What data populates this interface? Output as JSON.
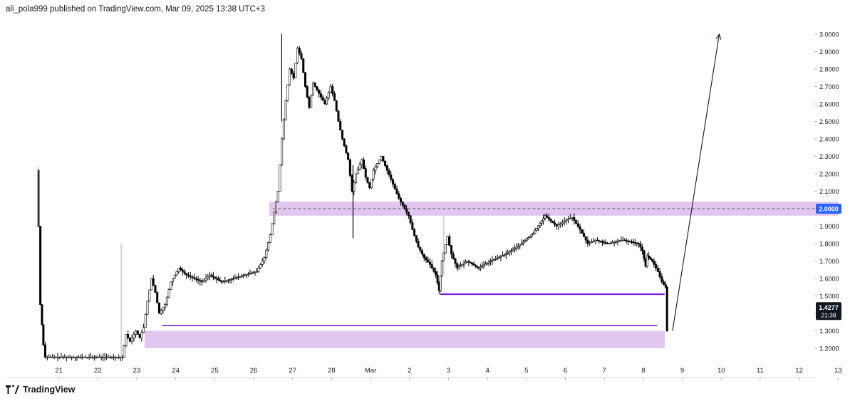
{
  "header": {
    "published_by": "ali_pola999 published on TradingView.com, Mar 09, 2025 13:38 UTC+3"
  },
  "footer": {
    "brand": "TradingView"
  },
  "colors": {
    "candle": "#000000",
    "zone_fill": "#e1c6ef",
    "support_line": "#7b1fd6",
    "level_line": "#2962ff",
    "price_label_bg": "#2962ff",
    "current_label_bg": "#131722"
  },
  "chart_data": {
    "type": "candlestick",
    "title": "",
    "xlabel": "",
    "ylabel": "",
    "y_axis_position": "right",
    "ylim": [
      1.15,
      3.04
    ],
    "y_ticks": [
      "1.2000",
      "1.3000",
      "1.4000",
      "1.5000",
      "1.6000",
      "1.7000",
      "1.8000",
      "1.9000",
      "2.0000",
      "2.1000",
      "2.2000",
      "2.3000",
      "2.4000",
      "2.5000",
      "2.6000",
      "2.7000",
      "2.8000",
      "2.9000",
      "3.0000"
    ],
    "x_ticks": [
      "21",
      "22",
      "23",
      "24",
      "25",
      "26",
      "27",
      "28",
      "Mar",
      "2",
      "3",
      "4",
      "5",
      "6",
      "7",
      "8",
      "9",
      "10",
      "11",
      "12",
      "13"
    ],
    "price_path": [
      {
        "x": 20.45,
        "y": 2.22
      },
      {
        "x": 20.5,
        "y": 1.9
      },
      {
        "x": 20.55,
        "y": 1.45
      },
      {
        "x": 20.62,
        "y": 1.22
      },
      {
        "x": 20.68,
        "y": 1.15
      },
      {
        "x": 22.65,
        "y": 1.15
      },
      {
        "x": 22.75,
        "y": 1.28
      },
      {
        "x": 22.85,
        "y": 1.24
      },
      {
        "x": 23.0,
        "y": 1.3
      },
      {
        "x": 23.1,
        "y": 1.26
      },
      {
        "x": 23.2,
        "y": 1.32
      },
      {
        "x": 23.3,
        "y": 1.47
      },
      {
        "x": 23.4,
        "y": 1.6
      },
      {
        "x": 23.5,
        "y": 1.52
      },
      {
        "x": 23.6,
        "y": 1.4
      },
      {
        "x": 23.75,
        "y": 1.45
      },
      {
        "x": 23.9,
        "y": 1.58
      },
      {
        "x": 24.1,
        "y": 1.66
      },
      {
        "x": 24.3,
        "y": 1.62
      },
      {
        "x": 24.5,
        "y": 1.6
      },
      {
        "x": 24.7,
        "y": 1.58
      },
      {
        "x": 24.9,
        "y": 1.62
      },
      {
        "x": 25.2,
        "y": 1.58
      },
      {
        "x": 25.5,
        "y": 1.6
      },
      {
        "x": 25.8,
        "y": 1.62
      },
      {
        "x": 26.1,
        "y": 1.64
      },
      {
        "x": 26.3,
        "y": 1.72
      },
      {
        "x": 26.45,
        "y": 1.85
      },
      {
        "x": 26.55,
        "y": 1.98
      },
      {
        "x": 26.65,
        "y": 2.1
      },
      {
        "x": 26.75,
        "y": 2.4
      },
      {
        "x": 26.85,
        "y": 2.62
      },
      {
        "x": 26.95,
        "y": 2.8
      },
      {
        "x": 27.05,
        "y": 2.75
      },
      {
        "x": 27.15,
        "y": 2.92
      },
      {
        "x": 27.25,
        "y": 2.86
      },
      {
        "x": 27.35,
        "y": 2.7
      },
      {
        "x": 27.45,
        "y": 2.58
      },
      {
        "x": 27.55,
        "y": 2.72
      },
      {
        "x": 27.7,
        "y": 2.66
      },
      {
        "x": 27.85,
        "y": 2.6
      },
      {
        "x": 28.0,
        "y": 2.7
      },
      {
        "x": 28.1,
        "y": 2.62
      },
      {
        "x": 28.2,
        "y": 2.5
      },
      {
        "x": 28.3,
        "y": 2.4
      },
      {
        "x": 28.45,
        "y": 2.28
      },
      {
        "x": 28.55,
        "y": 2.1
      },
      {
        "x": 28.65,
        "y": 2.2
      },
      {
        "x": 28.8,
        "y": 2.28
      },
      {
        "x": 28.9,
        "y": 2.18
      },
      {
        "x": 29.0,
        "y": 2.12
      },
      {
        "x": 29.1,
        "y": 2.22
      },
      {
        "x": 29.3,
        "y": 2.3
      },
      {
        "x": 29.45,
        "y": 2.22
      },
      {
        "x": 29.6,
        "y": 2.14
      },
      {
        "x": 29.75,
        "y": 2.06
      },
      {
        "x": 29.9,
        "y": 2.0
      },
      {
        "x": 30.0,
        "y": 1.96
      },
      {
        "x": 30.1,
        "y": 1.88
      },
      {
        "x": 30.25,
        "y": 1.78
      },
      {
        "x": 30.4,
        "y": 1.72
      },
      {
        "x": 30.55,
        "y": 1.68
      },
      {
        "x": 30.7,
        "y": 1.62
      },
      {
        "x": 30.78,
        "y": 1.53
      },
      {
        "x": 30.85,
        "y": 1.7
      },
      {
        "x": 31.0,
        "y": 1.84
      },
      {
        "x": 31.1,
        "y": 1.74
      },
      {
        "x": 31.25,
        "y": 1.66
      },
      {
        "x": 31.5,
        "y": 1.7
      },
      {
        "x": 31.8,
        "y": 1.66
      },
      {
        "x": 32.1,
        "y": 1.7
      },
      {
        "x": 32.5,
        "y": 1.74
      },
      {
        "x": 32.9,
        "y": 1.8
      },
      {
        "x": 33.2,
        "y": 1.86
      },
      {
        "x": 33.5,
        "y": 1.96
      },
      {
        "x": 33.6,
        "y": 1.94
      },
      {
        "x": 33.8,
        "y": 1.9
      },
      {
        "x": 34.0,
        "y": 1.93
      },
      {
        "x": 34.2,
        "y": 1.95
      },
      {
        "x": 34.4,
        "y": 1.88
      },
      {
        "x": 34.6,
        "y": 1.8
      },
      {
        "x": 34.8,
        "y": 1.82
      },
      {
        "x": 35.1,
        "y": 1.8
      },
      {
        "x": 35.5,
        "y": 1.82
      },
      {
        "x": 35.9,
        "y": 1.8
      },
      {
        "x": 36.0,
        "y": 1.76
      },
      {
        "x": 36.08,
        "y": 1.67
      },
      {
        "x": 36.12,
        "y": 1.73
      },
      {
        "x": 36.25,
        "y": 1.7
      },
      {
        "x": 36.4,
        "y": 1.64
      },
      {
        "x": 36.5,
        "y": 1.58
      },
      {
        "x": 36.6,
        "y": 1.55
      },
      {
        "x": 36.62,
        "y": 1.3
      }
    ],
    "annotations": {
      "resistance_zone": {
        "x_start": 26.4,
        "x_end": 41.0,
        "y_low": 1.96,
        "y_high": 2.04
      },
      "support_zone": {
        "x_start": 23.2,
        "x_end": 36.55,
        "y_low": 1.2,
        "y_high": 1.3
      },
      "horizontal_levels": [
        {
          "x_start": 30.78,
          "x_end": 36.55,
          "y": 1.51
        },
        {
          "x_start": 23.65,
          "x_end": 36.35,
          "y": 1.33
        }
      ],
      "dashed_level": {
        "y": 2.0,
        "label": "2.0000"
      },
      "projection_arrow": {
        "from": {
          "x": 36.75,
          "y": 1.3
        },
        "to": {
          "x": 37.95,
          "y": 3.0
        }
      },
      "current_price": {
        "value": "1.4277",
        "countdown": "21:38"
      }
    }
  }
}
